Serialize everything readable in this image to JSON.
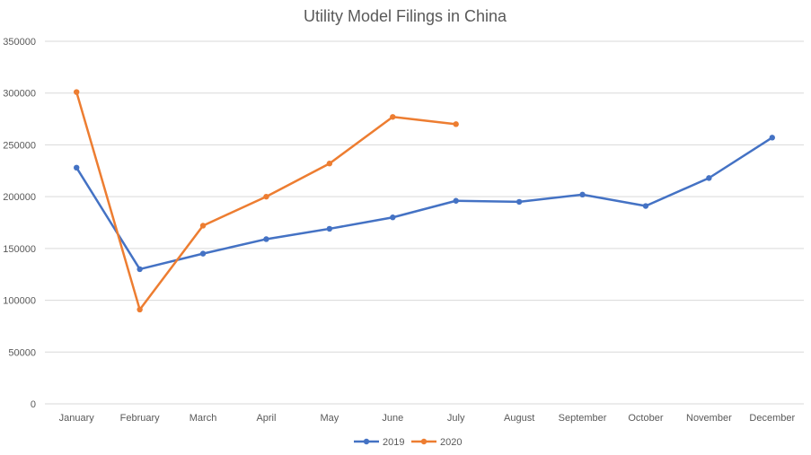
{
  "chart_data": {
    "type": "line",
    "title": "Utility Model Filings in China",
    "xlabel": "",
    "ylabel": "",
    "categories": [
      "January",
      "February",
      "March",
      "April",
      "May",
      "June",
      "July",
      "August",
      "September",
      "October",
      "November",
      "December"
    ],
    "ylim": [
      0,
      350000
    ],
    "yticks": [
      0,
      50000,
      100000,
      150000,
      200000,
      250000,
      300000,
      350000
    ],
    "yticklabels": [
      "0",
      "50000",
      "100000",
      "150000",
      "200000",
      "250000",
      "300000",
      "350000"
    ],
    "grid": true,
    "legend_position": "bottom",
    "series": [
      {
        "name": "2019",
        "color": "#4472c4",
        "values": [
          228000,
          130000,
          145000,
          159000,
          169000,
          180000,
          196000,
          195000,
          202000,
          191000,
          218000,
          257000
        ]
      },
      {
        "name": "2020",
        "color": "#ed7d31",
        "values": [
          301000,
          91000,
          172000,
          200000,
          232000,
          277000,
          270000,
          null,
          null,
          null,
          null,
          null
        ]
      }
    ]
  }
}
